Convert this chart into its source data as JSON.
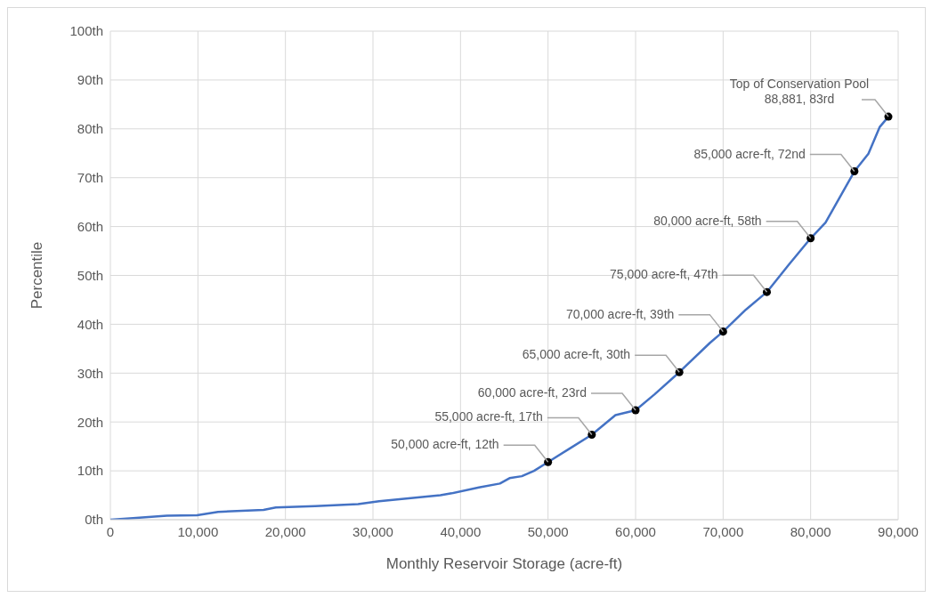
{
  "chart_data": {
    "type": "line",
    "xlabel": "Monthly Reservoir Storage (acre-ft)",
    "ylabel": "Percentile",
    "xlim": [
      0,
      90000
    ],
    "xticks": [
      {
        "value": 0,
        "label": "0"
      },
      {
        "value": 10000,
        "label": "10,000"
      },
      {
        "value": 20000,
        "label": "20,000"
      },
      {
        "value": 30000,
        "label": "30,000"
      },
      {
        "value": 40000,
        "label": "40,000"
      },
      {
        "value": 50000,
        "label": "50,000"
      },
      {
        "value": 60000,
        "label": "60,000"
      },
      {
        "value": 70000,
        "label": "70,000"
      },
      {
        "value": 80000,
        "label": "80,000"
      },
      {
        "value": 90000,
        "label": "90,000"
      }
    ],
    "ylim": [
      0,
      100
    ],
    "yticks": [
      {
        "value": 0,
        "label": "0th"
      },
      {
        "value": 10,
        "label": "10th"
      },
      {
        "value": 20,
        "label": "20th"
      },
      {
        "value": 30,
        "label": "30th"
      },
      {
        "value": 40,
        "label": "40th"
      },
      {
        "value": 50,
        "label": "50th"
      },
      {
        "value": 60,
        "label": "60th"
      },
      {
        "value": 70,
        "label": "70th"
      },
      {
        "value": 80,
        "label": "80th"
      },
      {
        "value": 90,
        "label": "90th"
      },
      {
        "value": 100,
        "label": "100th"
      }
    ],
    "grid": true,
    "legend": false,
    "line_style": "solid",
    "series": [
      {
        "color": "#4472c4",
        "marker": "none",
        "x": [
          0,
          2600,
          6450,
          9900,
          12300,
          17500,
          18900,
          23400,
          28300,
          30700,
          37700,
          39000,
          42100,
          44500,
          45600,
          47000,
          48400,
          50000,
          52500,
          55000,
          57700,
          60000,
          62200,
          65000,
          68500,
          70000,
          72600,
          75000,
          77500,
          80000,
          81700,
          85000,
          86600,
          87900,
          88881
        ],
        "values": [
          0,
          0.3,
          0.8,
          0.9,
          1.6,
          2.0,
          2.5,
          2.8,
          3.2,
          3.8,
          5.0,
          5.4,
          6.6,
          7.4,
          8.5,
          8.9,
          10.0,
          11.8,
          14.6,
          17.4,
          21.4,
          22.4,
          25.7,
          30.2,
          36.2,
          38.5,
          43,
          46.6,
          52.2,
          57.6,
          60.8,
          71.3,
          74.9,
          80.4,
          82.5
        ]
      },
      {
        "type": "scatter",
        "color": "#000000",
        "marker": "circle",
        "x": [
          50000,
          55000,
          60000,
          65000,
          70000,
          75000,
          80000,
          85000,
          88881
        ],
        "values": [
          11.8,
          17.4,
          22.4,
          30.2,
          38.5,
          46.6,
          57.6,
          71.3,
          82.5
        ]
      }
    ],
    "annotations": [
      {
        "text": "50,000 acre-ft, 12th",
        "x": 50000,
        "y": 11.8
      },
      {
        "text": "55,000 acre-ft, 17th",
        "x": 55000,
        "y": 17.4
      },
      {
        "text": "60,000 acre-ft, 23rd",
        "x": 60000,
        "y": 22.4
      },
      {
        "text": "65,000 acre-ft, 30th",
        "x": 65000,
        "y": 30.2
      },
      {
        "text": "70,000 acre-ft, 39th",
        "x": 70000,
        "y": 38.5
      },
      {
        "text": "75,000 acre-ft, 47th",
        "x": 75000,
        "y": 46.6
      },
      {
        "text": "80,000 acre-ft, 58th",
        "x": 80000,
        "y": 57.6
      },
      {
        "text": "85,000 acre-ft, 72nd",
        "x": 85000,
        "y": 71.3
      },
      {
        "text": "Top of Conservation Pool\n88,881, 83rd",
        "x": 88881,
        "y": 82.5
      }
    ]
  }
}
